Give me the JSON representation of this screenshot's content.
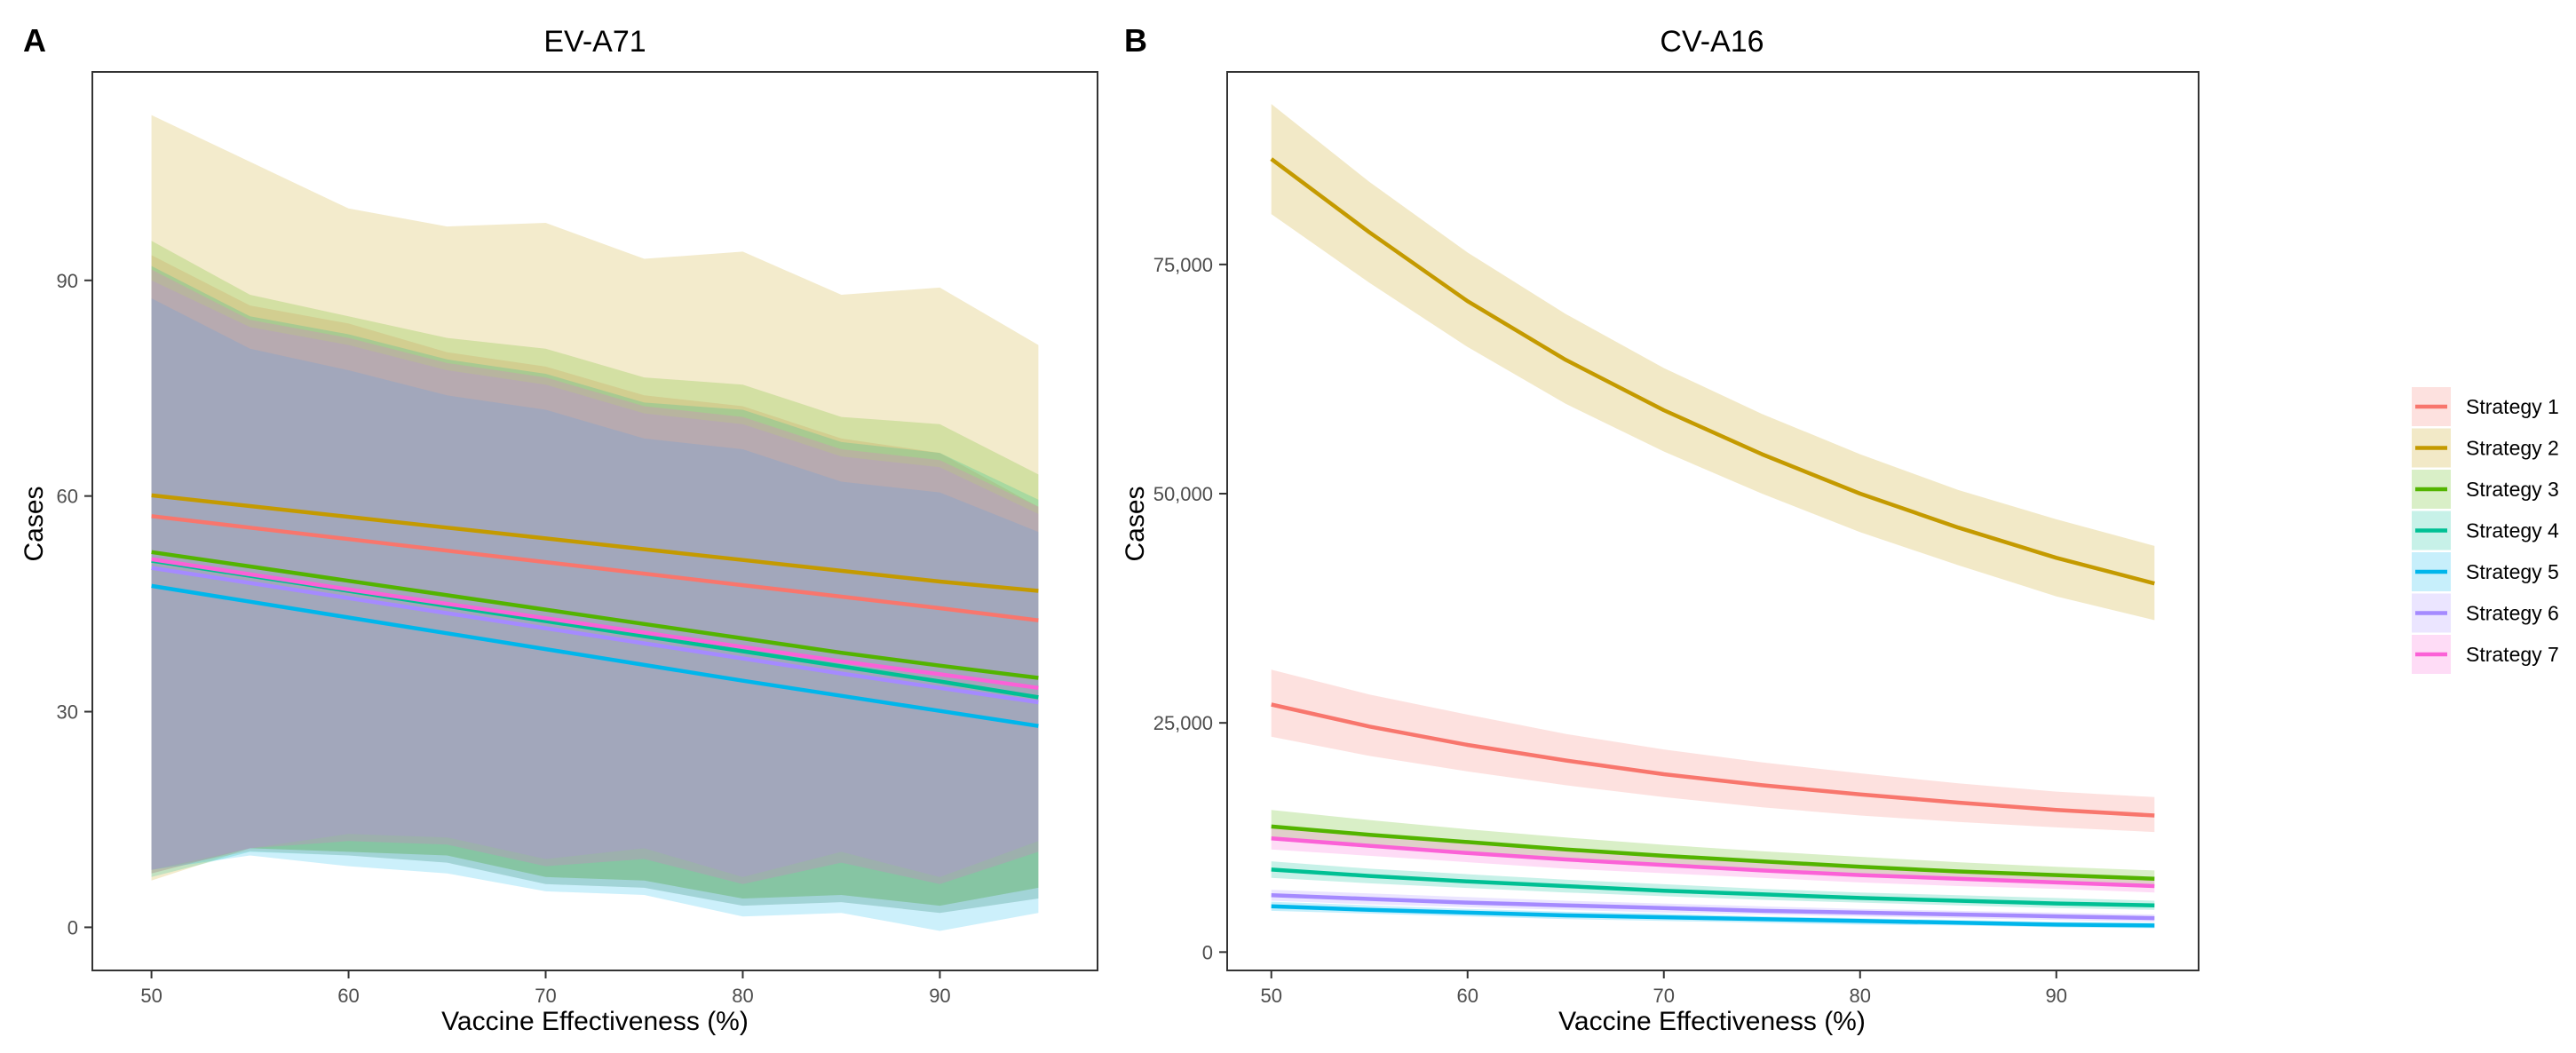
{
  "chart_data": [
    {
      "type": "line",
      "panel_label": "A",
      "title": "EV-A71",
      "xlabel": "Vaccine Effectiveness (%)",
      "ylabel": "Cases",
      "xlim": [
        47,
        98
      ],
      "ylim": [
        -6,
        119
      ],
      "xticks": [
        50,
        60,
        70,
        80,
        90
      ],
      "xtick_labels": [
        "50",
        "60",
        "70",
        "80",
        "90"
      ],
      "yticks": [
        0,
        30,
        60,
        90
      ],
      "ytick_labels": [
        "0",
        "30",
        "60",
        "90"
      ],
      "x": [
        50,
        55,
        60,
        65,
        70,
        75,
        80,
        85,
        90,
        95
      ],
      "series": [
        {
          "name": "Strategy 1",
          "color": "#F8766D",
          "values": [
            57.2,
            55.6,
            54.0,
            52.4,
            50.8,
            49.2,
            47.6,
            46.0,
            44.4,
            42.7
          ],
          "lower": [
            8.0,
            10.6,
            10.0,
            9.0,
            6.0,
            5.5,
            3.0,
            3.5,
            2.0,
            4.0
          ],
          "upper": [
            93.5,
            86.5,
            84.0,
            80.0,
            78.0,
            74.0,
            72.5,
            68.0,
            66.0,
            58.5
          ]
        },
        {
          "name": "Strategy 2",
          "color": "#C49A00",
          "values": [
            60.1,
            58.6,
            57.1,
            55.6,
            54.1,
            52.6,
            51.1,
            49.6,
            48.1,
            46.8
          ],
          "lower": [
            6.5,
            11.0,
            10.5,
            10.0,
            7.0,
            6.5,
            4.0,
            4.5,
            3.0,
            5.5
          ],
          "upper": [
            113.0,
            106.5,
            100.0,
            97.5,
            98.0,
            93.0,
            94.0,
            88.0,
            89.0,
            81.0
          ]
        },
        {
          "name": "Strategy 3",
          "color": "#53B400",
          "values": [
            52.2,
            50.2,
            48.2,
            46.2,
            44.2,
            42.2,
            40.2,
            38.2,
            36.4,
            34.7
          ],
          "lower": [
            7.5,
            11.0,
            10.5,
            10.0,
            7.0,
            6.5,
            4.0,
            4.5,
            3.0,
            5.5
          ],
          "upper": [
            95.5,
            88.0,
            85.0,
            82.0,
            80.5,
            76.5,
            75.5,
            71.0,
            70.0,
            63.0
          ]
        },
        {
          "name": "Strategy 4",
          "color": "#00C094",
          "values": [
            51.0,
            48.9,
            46.8,
            44.7,
            42.6,
            40.5,
            38.4,
            36.3,
            34.2,
            32.0
          ],
          "lower": [
            7.0,
            10.5,
            10.0,
            9.0,
            6.0,
            5.5,
            3.0,
            3.5,
            2.0,
            4.0
          ],
          "upper": [
            92.0,
            85.0,
            82.5,
            79.0,
            77.0,
            73.0,
            72.0,
            67.5,
            66.0,
            59.5
          ]
        },
        {
          "name": "Strategy 5",
          "color": "#00B6EB",
          "values": [
            47.5,
            45.3,
            43.1,
            40.9,
            38.7,
            36.5,
            34.3,
            32.2,
            30.1,
            28.0
          ],
          "lower": [
            8.0,
            10.0,
            8.5,
            7.5,
            5.0,
            4.5,
            1.5,
            2.0,
            -0.5,
            2.0
          ],
          "upper": [
            87.5,
            80.5,
            77.5,
            74.0,
            72.0,
            68.0,
            66.5,
            62.0,
            60.5,
            55.0
          ]
        },
        {
          "name": "Strategy 6",
          "color": "#A58AFF",
          "values": [
            50.0,
            47.9,
            45.8,
            43.7,
            41.6,
            39.5,
            37.4,
            35.3,
            33.3,
            31.3
          ],
          "lower": [
            8.0,
            11.0,
            13.0,
            12.5,
            9.5,
            11.0,
            7.0,
            10.5,
            7.0,
            12.0
          ],
          "upper": [
            90.0,
            83.5,
            81.0,
            77.5,
            75.5,
            71.5,
            70.0,
            65.5,
            64.0,
            57.5
          ]
        },
        {
          "name": "Strategy 7",
          "color": "#FB61D7",
          "values": [
            51.2,
            49.1,
            47.0,
            45.0,
            43.0,
            41.0,
            39.0,
            37.0,
            35.2,
            33.3
          ],
          "lower": [
            7.5,
            11.0,
            12.0,
            11.5,
            8.5,
            9.5,
            6.0,
            9.0,
            6.0,
            10.5
          ],
          "upper": [
            91.5,
            84.5,
            82.0,
            78.5,
            76.5,
            72.5,
            71.0,
            66.5,
            65.0,
            58.5
          ]
        }
      ]
    },
    {
      "type": "line",
      "panel_label": "B",
      "title": "CV-A16",
      "xlabel": "Vaccine Effectiveness (%)",
      "ylabel": "Cases",
      "xlim": [
        47.75,
        97.25
      ],
      "ylim": [
        -2000,
        96000
      ],
      "xticks": [
        50,
        60,
        70,
        80,
        90
      ],
      "xtick_labels": [
        "50",
        "60",
        "70",
        "80",
        "90"
      ],
      "yticks": [
        0,
        25000,
        50000,
        75000
      ],
      "ytick_labels": [
        "0",
        "25,000",
        "50,000",
        "75,000"
      ],
      "x": [
        50,
        55,
        60,
        65,
        70,
        75,
        80,
        85,
        90,
        95
      ],
      "series": [
        {
          "name": "Strategy 1",
          "color": "#F8766D",
          "values": [
            27000,
            24600,
            22600,
            20900,
            19400,
            18200,
            17200,
            16300,
            15500,
            14900
          ],
          "lower": [
            23500,
            21400,
            19700,
            18200,
            16900,
            15800,
            14900,
            14200,
            13600,
            13100
          ],
          "upper": [
            30800,
            28100,
            25900,
            23800,
            22100,
            20700,
            19500,
            18400,
            17500,
            16900
          ]
        },
        {
          "name": "Strategy 2",
          "color": "#C49A00",
          "values": [
            86500,
            78500,
            71000,
            64600,
            59100,
            54300,
            50000,
            46300,
            43000,
            40200
          ],
          "lower": [
            80500,
            73000,
            66000,
            59800,
            54600,
            50000,
            45800,
            42200,
            38800,
            36200
          ],
          "upper": [
            92500,
            84000,
            76300,
            69600,
            63700,
            58700,
            54300,
            50400,
            47200,
            44300
          ]
        },
        {
          "name": "Strategy 3",
          "color": "#53B400",
          "values": [
            13700,
            12800,
            12000,
            11200,
            10500,
            9900,
            9300,
            8800,
            8400,
            8000
          ],
          "lower": [
            12200,
            11400,
            10700,
            10000,
            9400,
            8900,
            8400,
            7900,
            7500,
            7200
          ],
          "upper": [
            15500,
            14400,
            13400,
            12500,
            11700,
            11000,
            10400,
            9800,
            9300,
            8900
          ]
        },
        {
          "name": "Strategy 4",
          "color": "#00C094",
          "values": [
            9000,
            8300,
            7700,
            7200,
            6700,
            6300,
            5900,
            5600,
            5300,
            5100
          ],
          "lower": [
            8100,
            7500,
            7000,
            6500,
            6100,
            5700,
            5400,
            5100,
            4800,
            4600
          ],
          "upper": [
            9900,
            9100,
            8500,
            7900,
            7400,
            6900,
            6500,
            6200,
            5900,
            5600
          ]
        },
        {
          "name": "Strategy 5",
          "color": "#00B6EB",
          "values": [
            5000,
            4600,
            4300,
            4000,
            3800,
            3600,
            3400,
            3200,
            3000,
            2900
          ],
          "lower": [
            4500,
            4200,
            3900,
            3600,
            3400,
            3200,
            3000,
            2900,
            2700,
            2600
          ],
          "upper": [
            5500,
            5100,
            4700,
            4400,
            4200,
            3900,
            3700,
            3500,
            3300,
            3200
          ]
        },
        {
          "name": "Strategy 6",
          "color": "#A58AFF",
          "values": [
            6200,
            5800,
            5400,
            5100,
            4800,
            4500,
            4300,
            4100,
            3900,
            3700
          ],
          "lower": [
            5600,
            5200,
            4900,
            4600,
            4300,
            4100,
            3900,
            3700,
            3500,
            3300
          ],
          "upper": [
            6800,
            6400,
            6000,
            5600,
            5300,
            5000,
            4700,
            4500,
            4300,
            4100
          ]
        },
        {
          "name": "Strategy 7",
          "color": "#FB61D7",
          "values": [
            12400,
            11600,
            10800,
            10100,
            9500,
            8900,
            8400,
            8000,
            7600,
            7200
          ],
          "lower": [
            11200,
            10500,
            9800,
            9100,
            8600,
            8100,
            7600,
            7200,
            6900,
            6500
          ],
          "upper": [
            13600,
            12700,
            11800,
            11100,
            10400,
            9700,
            9200,
            8700,
            8300,
            7900
          ]
        }
      ]
    }
  ],
  "legend": {
    "position": "right",
    "items": [
      {
        "label": "Strategy 1",
        "color": "#F8766D"
      },
      {
        "label": "Strategy 2",
        "color": "#C49A00"
      },
      {
        "label": "Strategy 3",
        "color": "#53B400"
      },
      {
        "label": "Strategy 4",
        "color": "#00C094"
      },
      {
        "label": "Strategy 5",
        "color": "#00B6EB"
      },
      {
        "label": "Strategy 6",
        "color": "#A58AFF"
      },
      {
        "label": "Strategy 7",
        "color": "#FB61D7"
      }
    ]
  }
}
